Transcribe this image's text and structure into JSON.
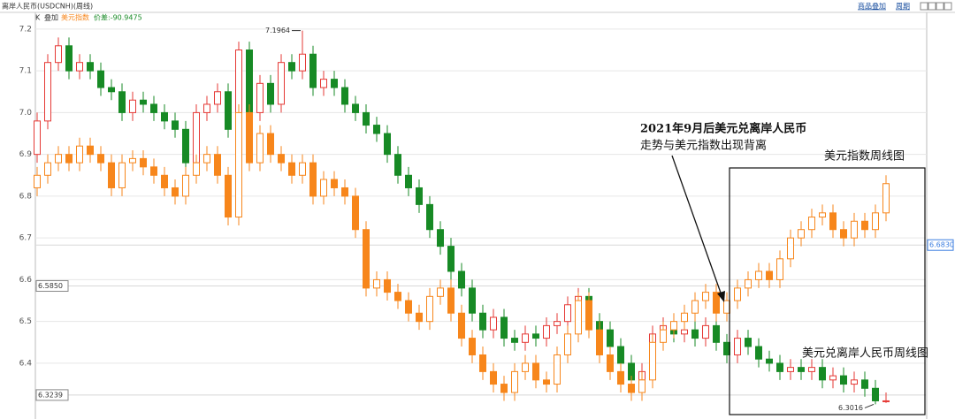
{
  "header": {
    "title": "离岸人民币(USDCNH)(周线)",
    "mode": "K",
    "overlay": "叠加",
    "overlay_name": "美元指数",
    "spread": "价差:-90.9475",
    "links": [
      "商品叠加",
      "周期"
    ]
  },
  "chart_data": {
    "type": "candlestick",
    "ylim": [
      6.275,
      7.24
    ],
    "yticks": [
      7.2,
      7.1,
      {
        "value": 7,
        "label": "7.0"
      },
      6.9,
      6.8,
      6.7,
      6.6,
      6.5,
      6.4
    ],
    "grid": true,
    "series": [
      {
        "up_color": "#e53935",
        "down_color": "#178a25",
        "open": [
          6.9,
          6.98,
          7.12,
          7.16,
          7.1,
          7.12,
          7.1,
          7.06,
          7.05,
          7.0,
          7.03,
          7.02,
          7.0,
          6.98,
          6.96,
          6.88,
          7.0,
          7.02,
          7.05,
          6.96,
          7.15,
          7.0,
          7.07,
          7.02,
          7.12,
          7.1,
          7.14,
          7.06,
          7.08,
          7.06,
          7.02,
          7.0,
          6.97,
          6.95,
          6.9,
          6.85,
          6.82,
          6.78,
          6.72,
          6.68,
          6.62,
          6.58,
          6.52,
          6.48,
          6.51,
          6.46,
          6.45,
          6.47,
          6.46,
          6.49,
          6.5,
          6.54,
          6.56,
          6.5,
          6.48,
          6.44,
          6.4,
          6.36,
          6.38,
          6.47,
          6.49,
          6.47,
          6.48,
          6.46,
          6.49,
          6.45,
          6.42,
          6.46,
          6.44,
          6.41,
          6.4,
          6.38,
          6.39,
          6.38,
          6.39,
          6.36,
          6.37,
          6.35,
          6.36,
          6.34,
          6.31
        ],
        "high": [
          7.0,
          7.14,
          7.18,
          7.18,
          7.14,
          7.14,
          7.12,
          7.08,
          7.07,
          7.05,
          7.05,
          7.04,
          7.02,
          7.0,
          6.98,
          7.02,
          7.04,
          7.07,
          7.07,
          7.17,
          7.17,
          7.09,
          7.09,
          7.14,
          7.14,
          7.1964,
          7.16,
          7.1,
          7.1,
          7.08,
          7.04,
          7.02,
          6.99,
          6.97,
          6.92,
          6.87,
          6.84,
          6.8,
          6.74,
          6.7,
          6.64,
          6.6,
          6.54,
          6.53,
          6.53,
          6.48,
          6.49,
          6.49,
          6.51,
          6.52,
          6.56,
          6.58,
          6.58,
          6.52,
          6.5,
          6.46,
          6.42,
          6.4,
          6.49,
          6.51,
          6.51,
          6.5,
          6.5,
          6.51,
          6.51,
          6.47,
          6.48,
          6.48,
          6.46,
          6.43,
          6.42,
          6.41,
          6.41,
          6.41,
          6.41,
          6.39,
          6.39,
          6.38,
          6.38,
          6.36,
          6.33
        ],
        "low": [
          6.88,
          6.96,
          7.1,
          7.08,
          7.08,
          7.08,
          7.04,
          7.03,
          6.98,
          6.98,
          7.0,
          6.98,
          6.96,
          6.94,
          6.86,
          6.86,
          6.98,
          7.0,
          6.94,
          6.94,
          6.98,
          6.98,
          7.0,
          7.0,
          7.08,
          7.08,
          7.04,
          7.04,
          7.04,
          7.0,
          6.98,
          6.95,
          6.93,
          6.88,
          6.83,
          6.8,
          6.76,
          6.7,
          6.66,
          6.6,
          6.56,
          6.5,
          6.46,
          6.46,
          6.44,
          6.43,
          6.43,
          6.44,
          6.44,
          6.47,
          6.48,
          6.52,
          6.48,
          6.46,
          6.42,
          6.38,
          6.34,
          6.34,
          6.36,
          6.45,
          6.45,
          6.45,
          6.44,
          6.44,
          6.43,
          6.4,
          6.4,
          6.42,
          6.39,
          6.38,
          6.36,
          6.36,
          6.36,
          6.36,
          6.34,
          6.34,
          6.33,
          6.33,
          6.32,
          6.3016,
          6.305
        ],
        "close": [
          6.98,
          7.12,
          7.16,
          7.1,
          7.12,
          7.1,
          7.06,
          7.05,
          7.0,
          7.03,
          7.02,
          7.0,
          6.98,
          6.96,
          6.88,
          7.0,
          7.02,
          7.05,
          6.96,
          7.15,
          7.0,
          7.07,
          7.02,
          7.12,
          7.1,
          7.14,
          7.06,
          7.08,
          7.06,
          7.02,
          7.0,
          6.97,
          6.95,
          6.9,
          6.85,
          6.82,
          6.78,
          6.72,
          6.68,
          6.62,
          6.58,
          6.52,
          6.48,
          6.51,
          6.46,
          6.45,
          6.47,
          6.46,
          6.49,
          6.5,
          6.54,
          6.56,
          6.5,
          6.48,
          6.44,
          6.4,
          6.36,
          6.38,
          6.47,
          6.49,
          6.47,
          6.48,
          6.46,
          6.49,
          6.45,
          6.42,
          6.46,
          6.44,
          6.41,
          6.4,
          6.38,
          6.39,
          6.38,
          6.39,
          6.36,
          6.37,
          6.35,
          6.36,
          6.34,
          6.31,
          6.31
        ]
      },
      {
        "up_color": "#f7861b",
        "down_color": "#f7861b",
        "open": [
          6.82,
          6.85,
          6.88,
          6.9,
          6.88,
          6.92,
          6.9,
          6.88,
          6.82,
          6.88,
          6.89,
          6.87,
          6.85,
          6.82,
          6.8,
          6.85,
          6.88,
          6.9,
          6.85,
          6.75,
          7.0,
          6.88,
          6.95,
          6.9,
          6.88,
          6.85,
          6.88,
          6.8,
          6.84,
          6.82,
          6.8,
          6.72,
          6.58,
          6.6,
          6.57,
          6.55,
          6.52,
          6.5,
          6.56,
          6.58,
          6.52,
          6.46,
          6.42,
          6.38,
          6.35,
          6.33,
          6.38,
          6.4,
          6.36,
          6.35,
          6.42,
          6.47,
          6.55,
          6.48,
          6.42,
          6.38,
          6.35,
          6.33,
          6.36,
          6.45,
          6.48,
          6.5,
          6.52,
          6.55,
          6.57,
          6.52,
          6.55,
          6.58,
          6.6,
          6.62,
          6.6,
          6.65,
          6.7,
          6.72,
          6.75,
          6.76,
          6.72,
          6.7,
          6.74,
          6.72,
          6.76
        ],
        "high": [
          6.87,
          6.9,
          6.92,
          6.92,
          6.94,
          6.94,
          6.92,
          6.9,
          6.9,
          6.91,
          6.91,
          6.89,
          6.87,
          6.84,
          6.87,
          6.9,
          6.92,
          6.92,
          6.87,
          7.02,
          7.02,
          6.97,
          6.97,
          6.92,
          6.9,
          6.9,
          6.9,
          6.86,
          6.86,
          6.84,
          6.82,
          6.74,
          6.62,
          6.62,
          6.59,
          6.57,
          6.54,
          6.58,
          6.6,
          6.6,
          6.54,
          6.48,
          6.44,
          6.4,
          6.37,
          6.4,
          6.42,
          6.42,
          6.38,
          6.44,
          6.49,
          6.57,
          6.57,
          6.5,
          6.44,
          6.4,
          6.37,
          6.38,
          6.47,
          6.5,
          6.52,
          6.54,
          6.57,
          6.59,
          6.59,
          6.57,
          6.6,
          6.62,
          6.64,
          6.64,
          6.67,
          6.72,
          6.74,
          6.77,
          6.78,
          6.78,
          6.74,
          6.76,
          6.76,
          6.78,
          6.85
        ],
        "low": [
          6.8,
          6.83,
          6.86,
          6.86,
          6.86,
          6.88,
          6.86,
          6.8,
          6.8,
          6.86,
          6.85,
          6.83,
          6.8,
          6.78,
          6.78,
          6.83,
          6.86,
          6.83,
          6.73,
          6.73,
          6.86,
          6.86,
          6.88,
          6.86,
          6.83,
          6.83,
          6.78,
          6.78,
          6.8,
          6.78,
          6.7,
          6.56,
          6.56,
          6.55,
          6.53,
          6.5,
          6.48,
          6.48,
          6.54,
          6.5,
          6.44,
          6.4,
          6.36,
          6.33,
          6.31,
          6.31,
          6.36,
          6.34,
          6.33,
          6.33,
          6.4,
          6.45,
          6.46,
          6.4,
          6.36,
          6.33,
          6.31,
          6.31,
          6.34,
          6.43,
          6.46,
          6.48,
          6.5,
          6.53,
          6.5,
          6.5,
          6.53,
          6.56,
          6.58,
          6.58,
          6.58,
          6.63,
          6.68,
          6.7,
          6.73,
          6.7,
          6.68,
          6.68,
          6.7,
          6.7,
          6.74
        ],
        "close": [
          6.85,
          6.88,
          6.9,
          6.88,
          6.92,
          6.9,
          6.88,
          6.82,
          6.88,
          6.89,
          6.87,
          6.85,
          6.82,
          6.8,
          6.85,
          6.88,
          6.9,
          6.85,
          6.75,
          7.0,
          6.88,
          6.95,
          6.9,
          6.88,
          6.85,
          6.88,
          6.8,
          6.84,
          6.82,
          6.8,
          6.72,
          6.58,
          6.6,
          6.57,
          6.55,
          6.52,
          6.5,
          6.56,
          6.58,
          6.52,
          6.46,
          6.42,
          6.38,
          6.35,
          6.33,
          6.38,
          6.4,
          6.36,
          6.35,
          6.42,
          6.47,
          6.55,
          6.48,
          6.42,
          6.38,
          6.35,
          6.33,
          6.36,
          6.45,
          6.48,
          6.5,
          6.52,
          6.55,
          6.57,
          6.52,
          6.55,
          6.58,
          6.6,
          6.62,
          6.6,
          6.65,
          6.7,
          6.72,
          6.75,
          6.76,
          6.72,
          6.7,
          6.74,
          6.72,
          6.76,
          6.83
        ]
      }
    ],
    "price_marks": [
      {
        "value": 6.585,
        "label": "6.5850",
        "side": "left"
      },
      {
        "value": 6.3239,
        "label": "6.3239",
        "side": "left"
      },
      {
        "value": 6.683,
        "label": "6.6830",
        "side": "right"
      }
    ],
    "extremes": {
      "high": 7.1964,
      "low": 6.3016
    },
    "annotations": [
      "2021年9月后美元兑离岸人民币",
      "走势与美元指数出现背离",
      "美元指数周线图",
      "美元兑离岸人民币周线图"
    ]
  }
}
